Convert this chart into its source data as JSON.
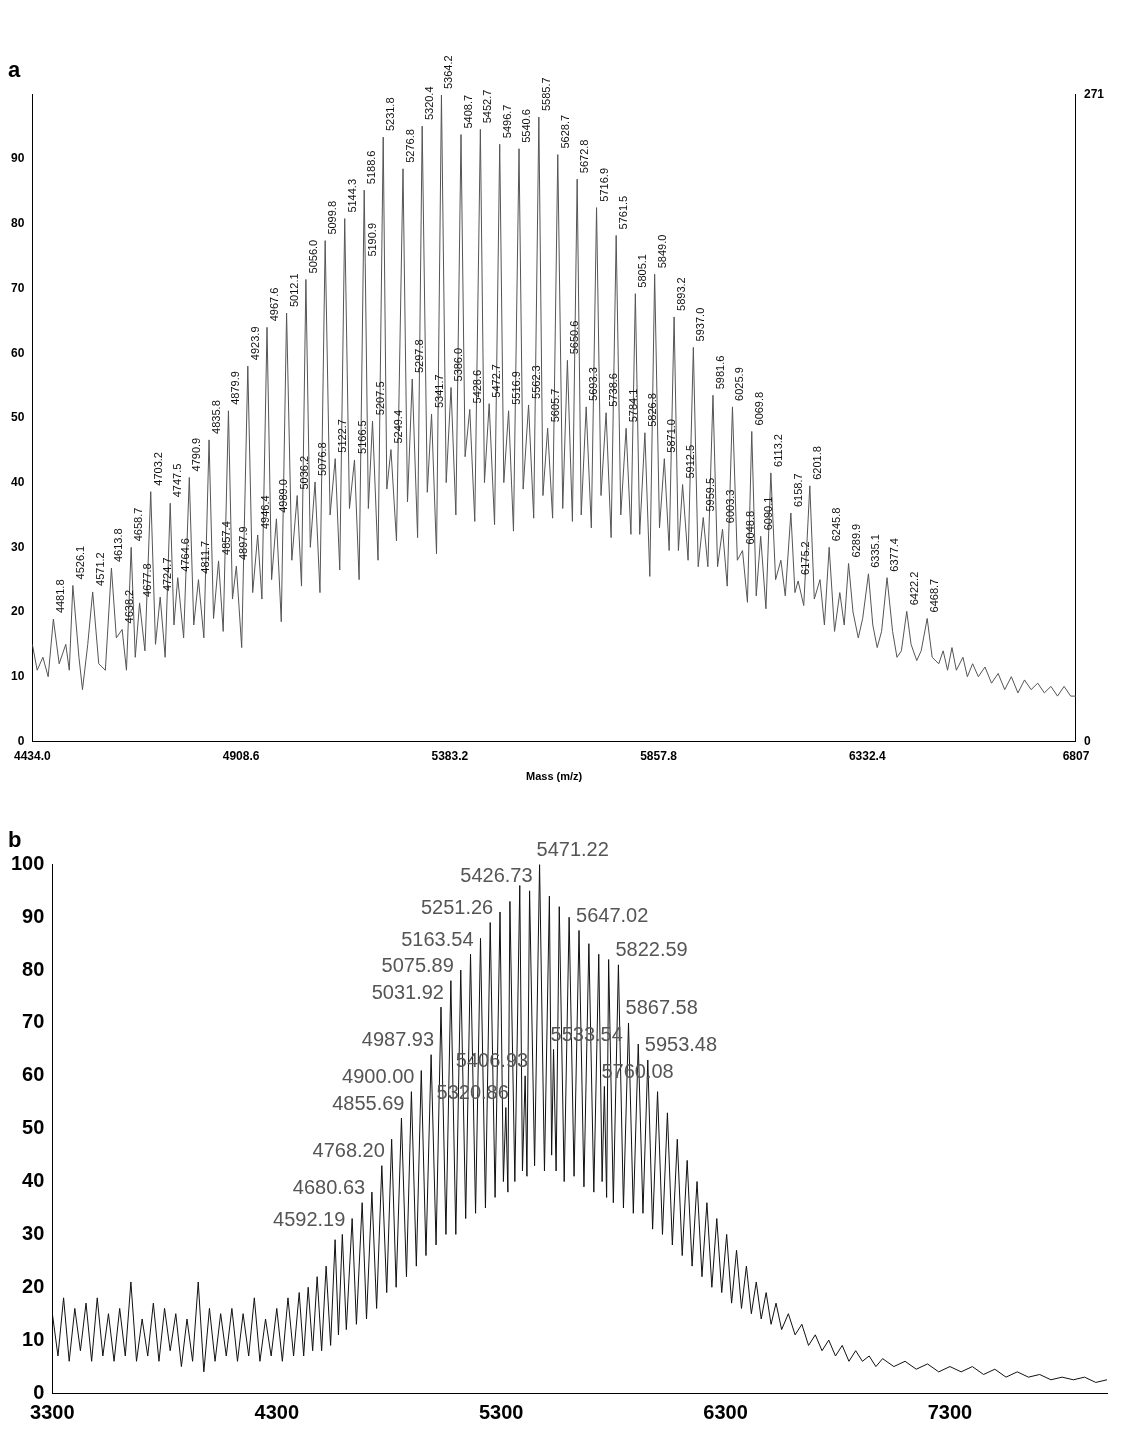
{
  "chart_data": [
    {
      "type": "line",
      "title": "a",
      "xlabel": "Mass (m/z)",
      "xlim": [
        4434,
        6807
      ],
      "xticks": [
        {
          "value": 4434,
          "label": "4434.0"
        },
        {
          "value": 4908.6,
          "label": "4908.6"
        },
        {
          "value": 5383.2,
          "label": "5383.2"
        },
        {
          "value": 5857.8,
          "label": "5857.8"
        },
        {
          "value": 6332.4,
          "label": "6332.4"
        },
        6807
      ],
      "ylim": [
        0,
        100
      ],
      "yticks": [
        0,
        10,
        20,
        30,
        40,
        50,
        60,
        70,
        80,
        90
      ],
      "y2lim": [
        0,
        271
      ],
      "y2ticks": [
        0,
        271
      ],
      "series": [
        {
          "color": "#555555",
          "x": [
            4434,
            4445,
            4458,
            4470,
            4481.8,
            4495,
            4510,
            4518,
            4526.1,
            4540,
            4548,
            4560,
            4571.2,
            4585,
            4600,
            4613.8,
            4625,
            4638.2,
            4648,
            4658.7,
            4668,
            4677.8,
            4690,
            4703.2,
            4714,
            4724.7,
            4736,
            4747.5,
            4756,
            4764.6,
            4778,
            4790.9,
            4801,
            4811.7,
            4824,
            4835.8,
            4846,
            4857.4,
            4868,
            4879.9,
            4889,
            4897.9,
            4910,
            4923.9,
            4935,
            4946.4,
            4956,
            4967.6,
            4978,
            4989,
            5000,
            5012.1,
            5024,
            5036.2,
            5046,
            5056,
            5066,
            5076.8,
            5088,
            5099.8,
            5111,
            5122.7,
            5133,
            5144.3,
            5155,
            5166.5,
            5177,
            5188.6,
            5190.9,
            5198,
            5207.5,
            5220,
            5231.8,
            5240,
            5249.4,
            5262,
            5276.8,
            5287,
            5297.8,
            5310,
            5320.4,
            5332,
            5341.7,
            5353,
            5364.2,
            5375,
            5386,
            5397,
            5408.7,
            5418,
            5428.6,
            5440,
            5452.7,
            5462,
            5472.7,
            5485,
            5496.7,
            5506,
            5516.9,
            5528,
            5540.6,
            5550,
            5562.3,
            5574,
            5585.7,
            5595,
            5605.7,
            5617,
            5628.7,
            5640,
            5650.6,
            5662,
            5672.8,
            5682,
            5693.3,
            5705,
            5716.9,
            5727,
            5738.6,
            5750,
            5761.5,
            5772,
            5784.1,
            5795,
            5805.1,
            5815,
            5826.8,
            5838,
            5849,
            5860,
            5871,
            5882,
            5893.2,
            5903,
            5912.5,
            5925,
            5937,
            5948,
            5959.5,
            5970,
            5981.6,
            5992,
            6003.3,
            6014,
            6025.9,
            6037,
            6048.8,
            6060,
            6069.8,
            6080,
            6090.1,
            6102,
            6113.2,
            6124,
            6136,
            6146,
            6158.7,
            6168,
            6175.2,
            6188,
            6201.8,
            6212,
            6225,
            6235,
            6245.8,
            6258,
            6270,
            6280,
            6289.9,
            6300,
            6312,
            6322,
            6335.1,
            6345,
            6355,
            6365,
            6377.4,
            6390,
            6400,
            6410,
            6422.2,
            6432,
            6445,
            6455,
            6468.7,
            6480,
            6495,
            6505,
            6515,
            6525,
            6535,
            6550,
            6560,
            6572,
            6585,
            6600,
            6615,
            6630,
            6645,
            6660,
            6675,
            6690,
            6705,
            6720,
            6735,
            6750,
            6765,
            6780,
            6795,
            6807
          ],
          "values": [
            15,
            11,
            13,
            10,
            18.9,
            12,
            15,
            11,
            24.1,
            13,
            8,
            15,
            23.1,
            12,
            11,
            26.8,
            16,
            17.3,
            11,
            30,
            13,
            21.4,
            14,
            38.6,
            15,
            22.3,
            13,
            36.8,
            18,
            25.3,
            16,
            40.8,
            18,
            25,
            16,
            46.6,
            19,
            27.9,
            17,
            51.1,
            22,
            27.1,
            14.5,
            58,
            23,
            31.9,
            22,
            64,
            25,
            34.4,
            18.5,
            66.2,
            28,
            38,
            24,
            71.4,
            30,
            40.1,
            23,
            77.4,
            35,
            43.7,
            26.5,
            80.8,
            36,
            43.5,
            25,
            85.2,
            74,
            36,
            49.5,
            28,
            93.4,
            39,
            45.1,
            31,
            88.5,
            37,
            56,
            31.5,
            95.1,
            38.5,
            50.6,
            29,
            99.9,
            40,
            54.7,
            35,
            93.8,
            44,
            51.3,
            34,
            94.6,
            40,
            52.2,
            33.5,
            92.3,
            40,
            51.1,
            32.5,
            91.6,
            39,
            52,
            34.5,
            96.5,
            38,
            48.4,
            34.5,
            90.7,
            36,
            58.9,
            34,
            86.9,
            35,
            51.7,
            33,
            82.5,
            38,
            50.8,
            31.5,
            78.2,
            35,
            48.4,
            32,
            69.2,
            32,
            47.7,
            25.5,
            72.2,
            33,
            43.7,
            29.5,
            65.6,
            29.5,
            39.7,
            28,
            60.9,
            27,
            34.6,
            27,
            53.5,
            27,
            32.8,
            24,
            51.7,
            28,
            29.5,
            21.5,
            47.9,
            22.5,
            31.7,
            20.5,
            41.5,
            25,
            28,
            22.5,
            35.3,
            23,
            24.8,
            21,
            39.5,
            22,
            25,
            18,
            30,
            17,
            23,
            18,
            27.5,
            20,
            16,
            19,
            25.9,
            18,
            14.5,
            17,
            25.3,
            17,
            13,
            14,
            20.1,
            15,
            12.5,
            14,
            19,
            13,
            12,
            14,
            11,
            14.5,
            11,
            13,
            10,
            12,
            10,
            11.5,
            9,
            10.5,
            8,
            10,
            7.5,
            9.5,
            8,
            9,
            7.5,
            8.5,
            7,
            8.5,
            7,
            7
          ]
        }
      ],
      "annotations": [
        {
          "text": "4481.8",
          "x": 4481.8,
          "y": 18.9
        },
        {
          "text": "4526.1",
          "x": 4526.1,
          "y": 24.1
        },
        {
          "text": "4571.2",
          "x": 4571.2,
          "y": 23.1
        },
        {
          "text": "4613.8",
          "x": 4613.8,
          "y": 26.8
        },
        {
          "text": "4638.2",
          "x": 4638.2,
          "y": 17.3
        },
        {
          "text": "4658.7",
          "x": 4658.7,
          "y": 30
        },
        {
          "text": "4677.8",
          "x": 4677.8,
          "y": 21.4
        },
        {
          "text": "4703.2",
          "x": 4703.2,
          "y": 38.6
        },
        {
          "text": "4724.7",
          "x": 4724.7,
          "y": 22.3
        },
        {
          "text": "4747.5",
          "x": 4747.5,
          "y": 36.8
        },
        {
          "text": "4764.6",
          "x": 4764.6,
          "y": 25.3
        },
        {
          "text": "4790.9",
          "x": 4790.9,
          "y": 40.8
        },
        {
          "text": "4811.7",
          "x": 4811.7,
          "y": 25
        },
        {
          "text": "4835.8",
          "x": 4835.8,
          "y": 46.6
        },
        {
          "text": "4857.4",
          "x": 4857.4,
          "y": 27.9
        },
        {
          "text": "4879.9",
          "x": 4879.9,
          "y": 51.1
        },
        {
          "text": "4897.9",
          "x": 4897.9,
          "y": 27.1
        },
        {
          "text": "4923.9",
          "x": 4923.9,
          "y": 58
        },
        {
          "text": "4946.4",
          "x": 4946.4,
          "y": 31.9
        },
        {
          "text": "4967.6",
          "x": 4967.6,
          "y": 64
        },
        {
          "text": "4989.0",
          "x": 4989,
          "y": 34.4
        },
        {
          "text": "5012.1",
          "x": 5012.1,
          "y": 66.2
        },
        {
          "text": "5036.2",
          "x": 5036.2,
          "y": 38
        },
        {
          "text": "5056.0",
          "x": 5056,
          "y": 71.4
        },
        {
          "text": "5076.8",
          "x": 5076.8,
          "y": 40.1
        },
        {
          "text": "5099.8",
          "x": 5099.8,
          "y": 77.4
        },
        {
          "text": "5122.7",
          "x": 5122.7,
          "y": 43.7
        },
        {
          "text": "5144.3",
          "x": 5144.3,
          "y": 80.8
        },
        {
          "text": "5166.5",
          "x": 5166.5,
          "y": 43.5
        },
        {
          "text": "5188.6",
          "x": 5188.6,
          "y": 85.2
        },
        {
          "text": "5190.9",
          "x": 5190.9,
          "y": 74
        },
        {
          "text": "5207.5",
          "x": 5207.5,
          "y": 49.5
        },
        {
          "text": "5231.8",
          "x": 5231.8,
          "y": 93.4
        },
        {
          "text": "5249.4",
          "x": 5249.4,
          "y": 45.1
        },
        {
          "text": "5276.8",
          "x": 5276.8,
          "y": 88.5
        },
        {
          "text": "5297.8",
          "x": 5297.8,
          "y": 56
        },
        {
          "text": "5320.4",
          "x": 5320.4,
          "y": 95.1
        },
        {
          "text": "5341.7",
          "x": 5341.7,
          "y": 50.6
        },
        {
          "text": "5364.2",
          "x": 5364.2,
          "y": 99.9
        },
        {
          "text": "5386.0",
          "x": 5386,
          "y": 54.7
        },
        {
          "text": "5408.7",
          "x": 5408.7,
          "y": 93.8
        },
        {
          "text": "5428.6",
          "x": 5428.6,
          "y": 51.3
        },
        {
          "text": "5452.7",
          "x": 5452.7,
          "y": 94.6
        },
        {
          "text": "5472.7",
          "x": 5472.7,
          "y": 52.2
        },
        {
          "text": "5496.7",
          "x": 5496.7,
          "y": 92.3
        },
        {
          "text": "5516.9",
          "x": 5516.9,
          "y": 51.1
        },
        {
          "text": "5540.6",
          "x": 5540.6,
          "y": 91.6
        },
        {
          "text": "5562.3",
          "x": 5562.3,
          "y": 52
        },
        {
          "text": "5585.7",
          "x": 5585.7,
          "y": 96.5
        },
        {
          "text": "5605.7",
          "x": 5605.7,
          "y": 48.4
        },
        {
          "text": "5628.7",
          "x": 5628.7,
          "y": 90.7
        },
        {
          "text": "5650.6",
          "x": 5650.6,
          "y": 58.9
        },
        {
          "text": "5672.8",
          "x": 5672.8,
          "y": 86.9
        },
        {
          "text": "5693.3",
          "x": 5693.3,
          "y": 51.7
        },
        {
          "text": "5716.9",
          "x": 5716.9,
          "y": 82.5
        },
        {
          "text": "5738.6",
          "x": 5738.6,
          "y": 50.8
        },
        {
          "text": "5761.5",
          "x": 5761.5,
          "y": 78.2
        },
        {
          "text": "5784.1",
          "x": 5784.1,
          "y": 48.4
        },
        {
          "text": "5805.1",
          "x": 5805.1,
          "y": 69.2
        },
        {
          "text": "5826.8",
          "x": 5826.8,
          "y": 47.7
        },
        {
          "text": "5849.0",
          "x": 5849,
          "y": 72.2
        },
        {
          "text": "5871.0",
          "x": 5871,
          "y": 43.7
        },
        {
          "text": "5893.2",
          "x": 5893.2,
          "y": 65.6
        },
        {
          "text": "5912.5",
          "x": 5912.5,
          "y": 39.7
        },
        {
          "text": "5937.0",
          "x": 5937,
          "y": 60.9
        },
        {
          "text": "5959.5",
          "x": 5959.5,
          "y": 34.6
        },
        {
          "text": "5981.6",
          "x": 5981.6,
          "y": 53.5
        },
        {
          "text": "6003.3",
          "x": 6003.3,
          "y": 32.8
        },
        {
          "text": "6025.9",
          "x": 6025.9,
          "y": 51.7
        },
        {
          "text": "6048.8",
          "x": 6048.8,
          "y": 29.5
        },
        {
          "text": "6069.8",
          "x": 6069.8,
          "y": 47.9
        },
        {
          "text": "6090.1",
          "x": 6090.1,
          "y": 31.7
        },
        {
          "text": "6113.2",
          "x": 6113.2,
          "y": 41.5
        },
        {
          "text": "6158.7",
          "x": 6158.7,
          "y": 35.3
        },
        {
          "text": "6175.2",
          "x": 6175.2,
          "y": 24.8
        },
        {
          "text": "6201.8",
          "x": 6201.8,
          "y": 39.5
        },
        {
          "text": "6245.8",
          "x": 6245.8,
          "y": 30
        },
        {
          "text": "6289.9",
          "x": 6289.9,
          "y": 27.5
        },
        {
          "text": "6335.1",
          "x": 6335.1,
          "y": 25.9
        },
        {
          "text": "6377.4",
          "x": 6377.4,
          "y": 25.3
        },
        {
          "text": "6422.2",
          "x": 6422.2,
          "y": 20.1
        },
        {
          "text": "6468.7",
          "x": 6468.7,
          "y": 19
        }
      ]
    },
    {
      "type": "line",
      "title": "b",
      "xlim": [
        3300,
        8000
      ],
      "xticks": [
        3300,
        4300,
        5300,
        6300,
        7300
      ],
      "ylim": [
        0,
        100
      ],
      "yticks": [
        0,
        10,
        20,
        30,
        40,
        50,
        60,
        70,
        80,
        90,
        100
      ],
      "series": [
        {
          "color": "#111111",
          "x": [
            3300,
            3325,
            3350,
            3375,
            3400,
            3425,
            3450,
            3475,
            3500,
            3525,
            3550,
            3575,
            3600,
            3625,
            3650,
            3675,
            3700,
            3725,
            3750,
            3775,
            3800,
            3825,
            3850,
            3875,
            3900,
            3925,
            3950,
            3975,
            4000,
            4025,
            4050,
            4075,
            4100,
            4125,
            4150,
            4175,
            4200,
            4225,
            4250,
            4275,
            4300,
            4325,
            4350,
            4375,
            4400,
            4420,
            4440,
            4460,
            4480,
            4500,
            4520,
            4540,
            4560,
            4575,
            4592.19,
            4610,
            4636,
            4655,
            4680.63,
            4700,
            4724,
            4745,
            4768.2,
            4790,
            4812,
            4832,
            4855.69,
            4878,
            4900,
            4922,
            4944,
            4965,
            4987.93,
            5010,
            5031.92,
            5054,
            5075.89,
            5098,
            5120,
            5142,
            5163.54,
            5186,
            5208,
            5230,
            5251.26,
            5273,
            5295,
            5310,
            5320.86,
            5330,
            5339,
            5361,
            5383,
            5395,
            5406.93,
            5415,
            5426.73,
            5449,
            5471.22,
            5493,
            5515,
            5525,
            5533.54,
            5545,
            5559,
            5581,
            5603,
            5625,
            5647.02,
            5669,
            5691,
            5713,
            5735,
            5750,
            5760.08,
            5770,
            5779,
            5800,
            5822.59,
            5845,
            5867.58,
            5889,
            5911,
            5932,
            5953.48,
            5975,
            5997,
            6019,
            6041,
            6063,
            6085,
            6107,
            6129,
            6151,
            6173,
            6195,
            6217,
            6239,
            6261,
            6283,
            6305,
            6327,
            6349,
            6371,
            6393,
            6415,
            6437,
            6459,
            6481,
            6503,
            6525,
            6550,
            6580,
            6610,
            6640,
            6670,
            6700,
            6730,
            6760,
            6790,
            6820,
            6850,
            6880,
            6910,
            6940,
            6970,
            7000,
            7050,
            7100,
            7150,
            7200,
            7250,
            7300,
            7350,
            7400,
            7450,
            7500,
            7550,
            7600,
            7650,
            7700,
            7750,
            7800,
            7850,
            7900,
            7950,
            8000
          ],
          "values": [
            15,
            7,
            18,
            6,
            16,
            8,
            17,
            6,
            18,
            7,
            15,
            6,
            16,
            7,
            21,
            6,
            14,
            7,
            17,
            6,
            16,
            8,
            15,
            5,
            14,
            6,
            21,
            4,
            16,
            6,
            15,
            7,
            16,
            6,
            15,
            7,
            18,
            6,
            14,
            7,
            16,
            6,
            18,
            7,
            19,
            7,
            20,
            8,
            22,
            8,
            24,
            9,
            29,
            11,
            30,
            12,
            33,
            13,
            36,
            14,
            38,
            16,
            43,
            19,
            48,
            20,
            52,
            22,
            57,
            24,
            61,
            26,
            64,
            28,
            73,
            30,
            78,
            30,
            80,
            33,
            83,
            34,
            86,
            35,
            89,
            37,
            91,
            40,
            54,
            38,
            93,
            40,
            96,
            42,
            60,
            41,
            95,
            43,
            100,
            42,
            94,
            45,
            65,
            42,
            92,
            40,
            90,
            41,
            87.5,
            39,
            85,
            38,
            83,
            40,
            58,
            37,
            82,
            36,
            81,
            35,
            70,
            34,
            66,
            34,
            63,
            31,
            57,
            30,
            53,
            28,
            48,
            26,
            44,
            24,
            40,
            22,
            36,
            20,
            33,
            19,
            30,
            17,
            27,
            16,
            24,
            15,
            21,
            14,
            19,
            13,
            17,
            12,
            15,
            11,
            13,
            9,
            11,
            8,
            10,
            7,
            9,
            6,
            8,
            6,
            7,
            5,
            6.5,
            5,
            6,
            4.5,
            5.5,
            4,
            5,
            4,
            5,
            3.5,
            4.5,
            3,
            4,
            3,
            3.5,
            2.5,
            3,
            2.5,
            3,
            2,
            2.5
          ]
        }
      ],
      "annotations": [
        {
          "text": "5471.22",
          "x": 5471.22,
          "y": 100
        },
        {
          "text": "5426.73",
          "x": 5426.73,
          "y": 95
        },
        {
          "text": "5251.26",
          "x": 5251.26,
          "y": 89
        },
        {
          "text": "5647.02",
          "x": 5647.02,
          "y": 87.5
        },
        {
          "text": "5163.54",
          "x": 5163.54,
          "y": 83
        },
        {
          "text": "5822.59",
          "x": 5822.59,
          "y": 81
        },
        {
          "text": "5075.89",
          "x": 5075.89,
          "y": 78
        },
        {
          "text": "5031.92",
          "x": 5031.92,
          "y": 73
        },
        {
          "text": "5867.58",
          "x": 5867.58,
          "y": 70
        },
        {
          "text": "4987.93",
          "x": 4987.93,
          "y": 64
        },
        {
          "text": "5533.54",
          "x": 5533.54,
          "y": 65
        },
        {
          "text": "5953.48",
          "x": 5953.48,
          "y": 63
        },
        {
          "text": "5406.93",
          "x": 5406.93,
          "y": 60
        },
        {
          "text": "5760.08",
          "x": 5760.08,
          "y": 58
        },
        {
          "text": "4900.00",
          "x": 4900,
          "y": 57
        },
        {
          "text": "4855.69",
          "x": 4855.69,
          "y": 52
        },
        {
          "text": "5320.86",
          "x": 5320.86,
          "y": 54
        },
        {
          "text": "4768.20",
          "x": 4768.2,
          "y": 43
        },
        {
          "text": "4680.63",
          "x": 4680.63,
          "y": 36
        },
        {
          "text": "4592.19",
          "x": 4592.19,
          "y": 30
        }
      ]
    }
  ]
}
